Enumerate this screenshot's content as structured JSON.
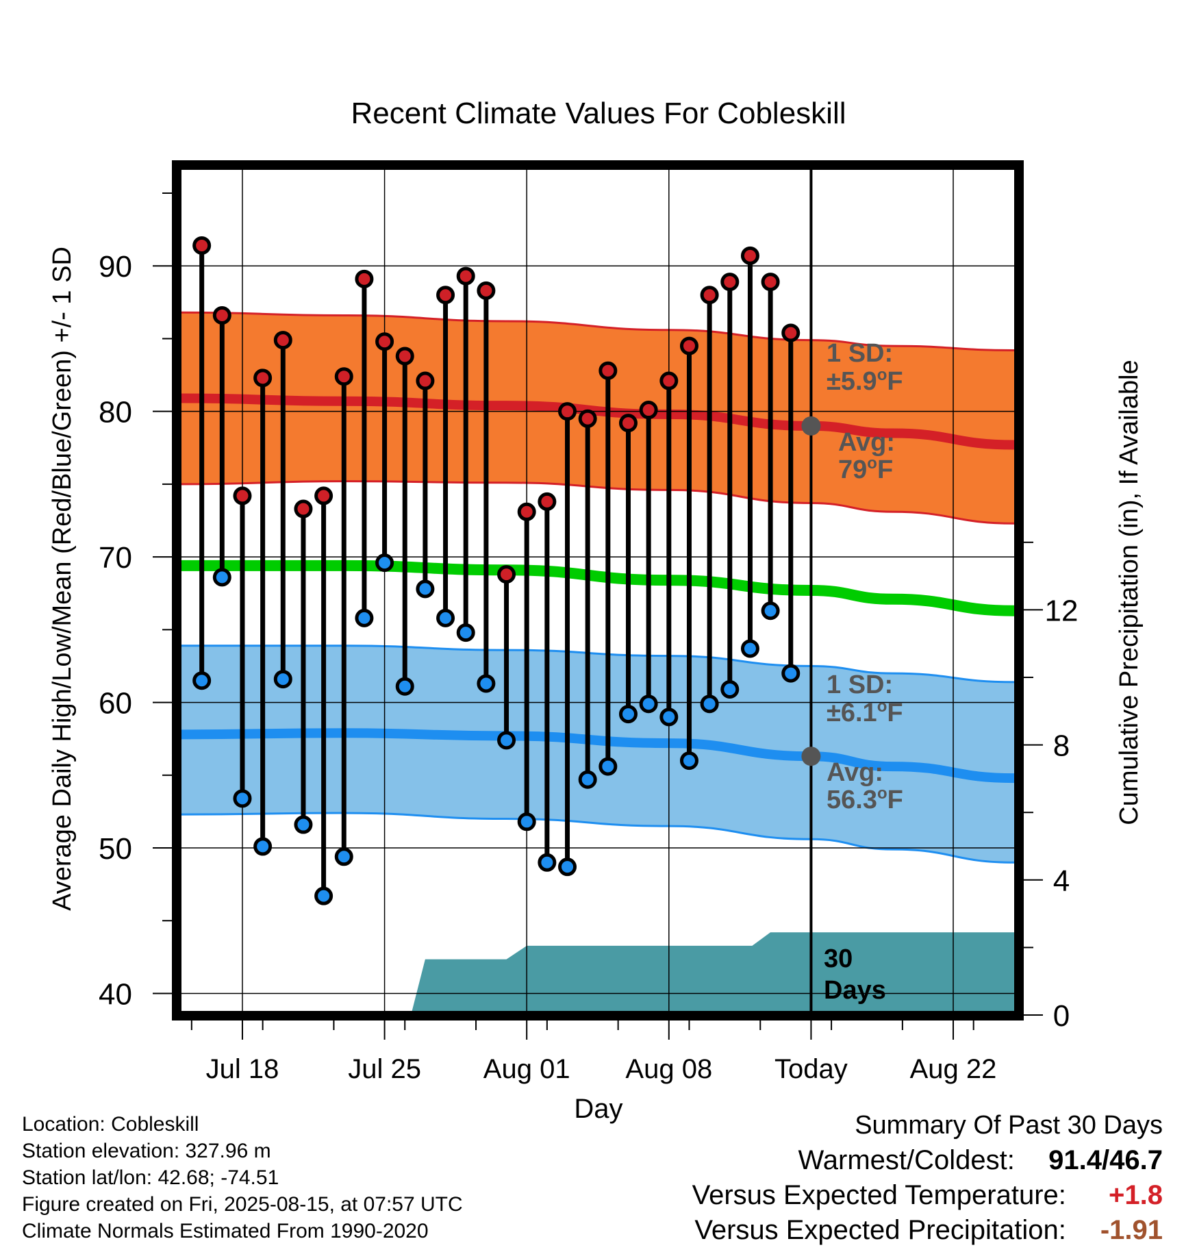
{
  "chart_data": {
    "type": "line",
    "title": "Recent Climate Values For Cobleskill",
    "xlabel": "Day",
    "ylabel": "Average Daily High/Low/Mean (Red/Blue/Green) +/- 1 SD",
    "y2label": "Cumulative Precipitation (in), If Available",
    "x_tick_labels": [
      "Jul 18",
      "Jul 25",
      "Aug 01",
      "Aug 08",
      "Today",
      "Aug 22"
    ],
    "x_tick_days": [
      3,
      10,
      17,
      24,
      31,
      38
    ],
    "x_range_days": [
      0,
      41
    ],
    "ylim": [
      38.8,
      96.6
    ],
    "y_ticks": [
      40,
      50,
      60,
      70,
      80,
      90
    ],
    "y2lim": [
      0,
      24
    ],
    "y2_ticks": [
      0,
      4,
      8,
      12
    ],
    "grid": true,
    "today_day": 31,
    "daily_obs": {
      "days": [
        1,
        2,
        3,
        4,
        5,
        6,
        7,
        8,
        9,
        10,
        11,
        12,
        13,
        14,
        15,
        16,
        17,
        18,
        19,
        20,
        21,
        22,
        23,
        24,
        25,
        26,
        27,
        28,
        29,
        30
      ],
      "high": [
        91.4,
        86.6,
        74.2,
        82.3,
        84.9,
        73.3,
        74.2,
        82.4,
        89.1,
        84.8,
        83.8,
        82.1,
        88.0,
        89.3,
        88.3,
        68.8,
        73.1,
        73.8,
        80.0,
        79.5,
        82.8,
        79.2,
        80.1,
        82.1,
        84.5,
        88.0,
        88.9,
        90.7,
        88.9,
        85.4
      ],
      "low": [
        61.5,
        68.6,
        53.4,
        50.1,
        61.6,
        51.6,
        46.7,
        49.4,
        65.8,
        69.6,
        61.1,
        67.8,
        65.8,
        64.8,
        61.3,
        57.4,
        51.8,
        49.0,
        48.7,
        54.7,
        55.6,
        59.2,
        59.9,
        59.0,
        56.0,
        59.9,
        60.9,
        63.7,
        66.3,
        62.0
      ]
    },
    "normal_high": {
      "label": "Avg:",
      "value": "79",
      "sd_label": "1 SD:",
      "sd": "±5.9",
      "unit": "°F",
      "days": [
        0,
        8,
        16,
        24,
        31,
        35,
        41
      ],
      "mean": [
        80.9,
        80.7,
        80.4,
        79.8,
        79.0,
        78.5,
        77.7
      ],
      "upper": [
        86.8,
        86.6,
        86.2,
        85.6,
        84.9,
        84.5,
        84.2
      ],
      "lower": [
        75.0,
        75.2,
        75.1,
        74.6,
        73.7,
        73.1,
        72.3
      ]
    },
    "normal_low": {
      "label": "Avg:",
      "value": "56.3",
      "sd_label": "1 SD:",
      "sd": "±6.1",
      "unit": "°F",
      "days": [
        0,
        8,
        16,
        24,
        31,
        35,
        41
      ],
      "mean": [
        57.8,
        57.9,
        57.7,
        57.2,
        56.3,
        55.6,
        54.8
      ],
      "upper": [
        63.9,
        63.9,
        63.6,
        63.2,
        62.5,
        62.0,
        61.4
      ],
      "lower": [
        52.3,
        52.4,
        52.0,
        51.5,
        50.6,
        49.9,
        49.0
      ]
    },
    "normal_mean": {
      "days": [
        0,
        8,
        16,
        24,
        31,
        35,
        41
      ],
      "values": [
        69.4,
        69.4,
        69.1,
        68.4,
        67.7,
        67.1,
        66.3
      ]
    },
    "precip": {
      "label_value": "30",
      "label_unit": "Days",
      "days": [
        11.3,
        12.0,
        14.9,
        16.0,
        17.0,
        28.1,
        29.0,
        41
      ],
      "cumulative": [
        0,
        1.65,
        1.65,
        1.65,
        2.05,
        2.05,
        2.45,
        2.45
      ]
    },
    "colors": {
      "high_band": "#f47a2f",
      "high_line": "#d42027",
      "high_marker": "#cf2027",
      "low_band": "#85c1e9",
      "low_line": "#1e8ef0",
      "low_marker": "#1e8ef0",
      "mean_line": "#00cc00",
      "precip": "#4a9ba4",
      "summary_temp": "#d42027",
      "summary_precip": "#a0522d"
    }
  },
  "station": {
    "location": "Location: Cobleskill",
    "elevation": "Station elevation: 327.96 m",
    "latlon": "Station lat/lon: 42.68; -74.51",
    "created": "Figure created on Fri, 2025-08-15, at 07:57 UTC",
    "normals": "Climate Normals Estimated From 1990-2020"
  },
  "summary": {
    "title": "Summary Of Past 30 Days",
    "warm_cold_label": "Warmest/Coldest:",
    "warm_cold_value": "91.4/46.7",
    "temp_label": "Versus Expected Temperature:",
    "temp_value": "+1.8",
    "precip_label": "Versus Expected Precipitation:",
    "precip_value": "-1.91"
  }
}
